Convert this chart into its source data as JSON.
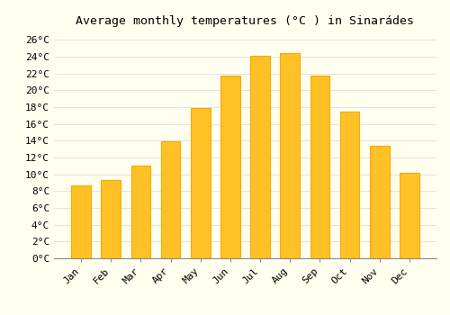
{
  "months": [
    "Jan",
    "Feb",
    "Mar",
    "Apr",
    "May",
    "Jun",
    "Jul",
    "Aug",
    "Sep",
    "Oct",
    "Nov",
    "Dec"
  ],
  "values": [
    8.7,
    9.3,
    11.0,
    13.9,
    17.9,
    21.8,
    24.1,
    24.4,
    21.8,
    17.5,
    13.4,
    10.2
  ],
  "bar_color": "#FFC125",
  "bar_edge_color": "#FFA500",
  "title": "Average monthly temperatures (°C ) in Sinarádes",
  "ylim": [
    0,
    27
  ],
  "yticks": [
    0,
    2,
    4,
    6,
    8,
    10,
    12,
    14,
    16,
    18,
    20,
    22,
    24,
    26
  ],
  "ytick_labels": [
    "0°C",
    "2°C",
    "4°C",
    "6°C",
    "8°C",
    "10°C",
    "12°C",
    "14°C",
    "16°C",
    "18°C",
    "20°C",
    "22°C",
    "24°C",
    "26°C"
  ],
  "background_color": "#FFFFF0",
  "grid_color": "#DDDDDD",
  "font_family": "monospace",
  "title_fontsize": 9.5,
  "tick_fontsize": 8
}
